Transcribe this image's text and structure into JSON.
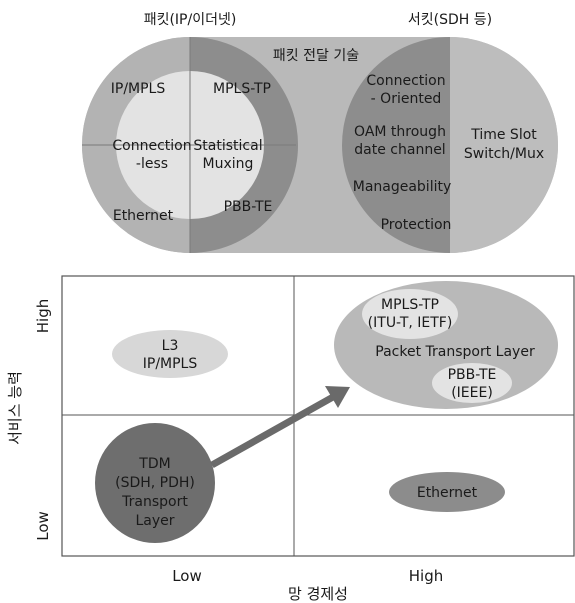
{
  "top": {
    "left_header": "패킷(IP/이더넷)",
    "right_header": "서킷(SDH 등)",
    "band_label": "패킷 전달 기술",
    "left": {
      "ip_mpls": "IP/MPLS",
      "ethernet": "Ethernet",
      "connectionless": [
        "Connection",
        "-less"
      ],
      "statistical": [
        "Statistical",
        "Muxing"
      ],
      "mpls_tp": "MPLS-TP",
      "pbb_te": "PBB-TE"
    },
    "right": {
      "connection_oriented": [
        "Connection",
        "- Oriented"
      ],
      "oam": [
        "OAM through",
        "date channel"
      ],
      "manageability": "Manageability",
      "protection": "Protection",
      "time_slot": [
        "Time Slot",
        "Switch/Mux"
      ]
    }
  },
  "bottom": {
    "y_axis_title": "서비스 능력",
    "y_high": "High",
    "y_low": "Low",
    "x_axis_title": "망 경제성",
    "x_low": "Low",
    "x_high": "High",
    "l3": [
      "L3",
      "IP/MPLS"
    ],
    "tdm": [
      "TDM",
      "(SDH, PDH)",
      "Transport",
      "Layer"
    ],
    "mpls_tp": [
      "MPLS-TP",
      "(ITU-T, IETF)"
    ],
    "packet_transport": "Packet Transport Layer",
    "pbb_te": [
      "PBB-TE",
      "(IEEE)"
    ],
    "ethernet": "Ethernet"
  },
  "colors": {
    "light_gray": "#b9b9b9",
    "mid_gray": "#8c8c8c",
    "dark_gray": "#6e6e6e",
    "pale": "#e3e3e3",
    "arrow": "#6a6a6a"
  }
}
